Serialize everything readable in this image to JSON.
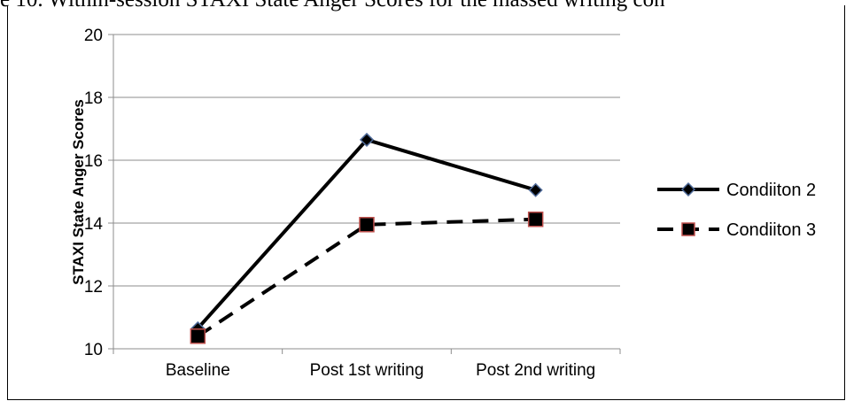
{
  "caption": "e 10. Within-session STAXI State Anger Scores for the massed writing con",
  "chart_data": {
    "type": "line",
    "title": "",
    "categories": [
      "Baseline",
      "Post 1st writing",
      "Post 2nd writing"
    ],
    "ylabel": "STAXI State Anger Scores",
    "xlabel": "",
    "ylim": [
      10,
      20
    ],
    "yticks": [
      10,
      12,
      14,
      16,
      18,
      20
    ],
    "grid": true,
    "legend_position": "right",
    "series": [
      {
        "name": "Condiiton 2",
        "values": [
          10.65,
          16.65,
          15.05
        ],
        "line_style": "solid",
        "marker": "diamond",
        "color": "#000000",
        "marker_edge": "#4f6b9a"
      },
      {
        "name": "Condiiton 3",
        "values": [
          10.4,
          13.95,
          14.12
        ],
        "line_style": "dashed",
        "marker": "square",
        "color": "#000000",
        "marker_edge": "#c0504d"
      }
    ]
  }
}
